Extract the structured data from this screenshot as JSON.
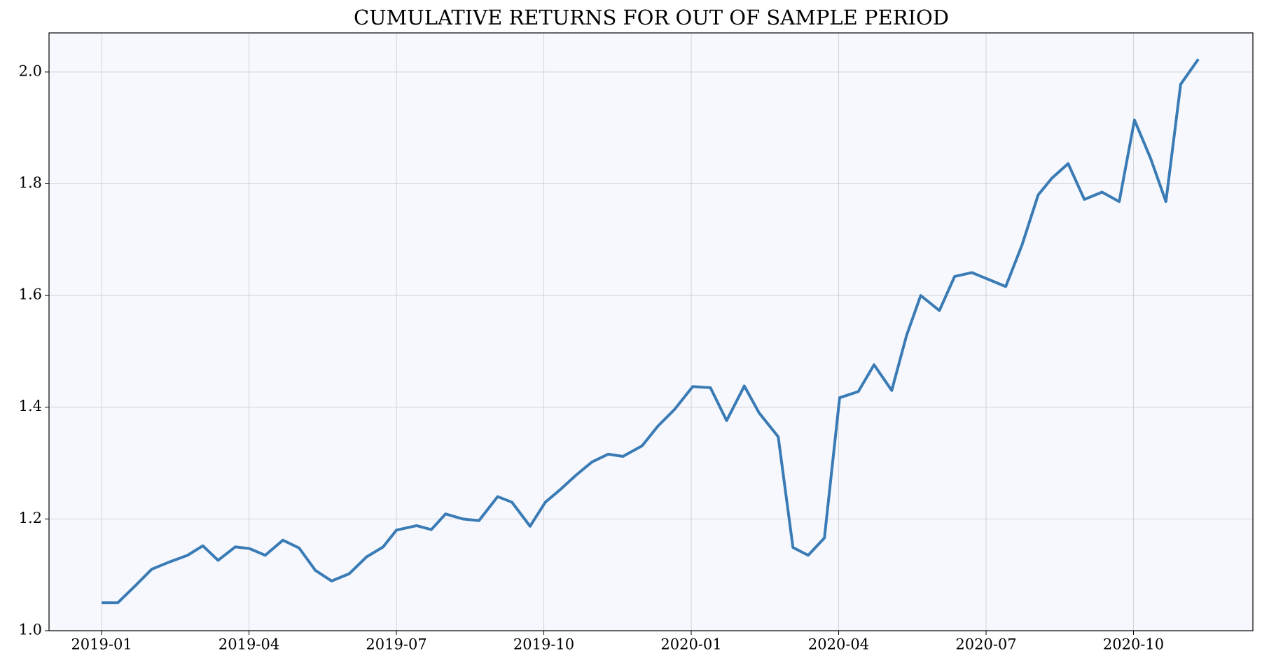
{
  "chart_data": {
    "type": "line",
    "title": "CUMULATIVE RETURNS FOR OUT OF SAMPLE PERIOD",
    "x": [
      0,
      0.33,
      0.68,
      1.02,
      1.38,
      1.75,
      2.06,
      2.37,
      2.72,
      3.01,
      3.33,
      3.69,
      4.02,
      4.35,
      4.68,
      5.04,
      5.39,
      5.73,
      6.0,
      6.41,
      6.71,
      7.0,
      7.35,
      7.68,
      8.06,
      8.35,
      8.72,
      9.03,
      9.34,
      9.65,
      9.98,
      10.31,
      10.61,
      11.0,
      11.32,
      11.66,
      12.03,
      12.39,
      12.72,
      13.08,
      13.38,
      13.77,
      14.07,
      14.38,
      14.71,
      15.02,
      15.4,
      15.72,
      16.08,
      16.38,
      16.67,
      17.05,
      17.36,
      17.71,
      18.07,
      18.4,
      18.73,
      19.06,
      19.34,
      19.67,
      20.0,
      20.36,
      20.71,
      21.02,
      21.35,
      21.66,
      21.96,
      22.32
    ],
    "series": [
      {
        "color": "#3a7bb5",
        "values": [
          1.05,
          1.05,
          1.08,
          1.11,
          1.123,
          1.135,
          1.152,
          1.126,
          1.15,
          1.147,
          1.135,
          1.162,
          1.148,
          1.108,
          1.089,
          1.102,
          1.132,
          1.15,
          1.18,
          1.188,
          1.181,
          1.209,
          1.2,
          1.197,
          1.24,
          1.23,
          1.187,
          1.23,
          1.253,
          1.278,
          1.302,
          1.316,
          1.312,
          1.331,
          1.366,
          1.396,
          1.437,
          1.435,
          1.376,
          1.438,
          1.39,
          1.347,
          1.149,
          1.135,
          1.166,
          1.417,
          1.428,
          1.476,
          1.43,
          1.528,
          1.6,
          1.573,
          1.634,
          1.641,
          1.628,
          1.616,
          1.69,
          1.78,
          1.81,
          1.836,
          1.772,
          1.785,
          1.768,
          1.914,
          1.845,
          1.768,
          1.978,
          2.023
        ]
      }
    ],
    "xlim": [
      -1.07,
      23.43
    ],
    "xticks": [
      {
        "value": 0,
        "label": "2019-01"
      },
      {
        "value": 3,
        "label": "2019-04"
      },
      {
        "value": 6,
        "label": "2019-07"
      },
      {
        "value": 9,
        "label": "2019-10"
      },
      {
        "value": 12,
        "label": "2020-01"
      },
      {
        "value": 15,
        "label": "2020-04"
      },
      {
        "value": 18,
        "label": "2020-07"
      },
      {
        "value": 21,
        "label": "2020-10"
      }
    ],
    "ylim": [
      1.0,
      2.07
    ],
    "yticks": [
      {
        "value": 1,
        "label": "1.0"
      },
      1.2,
      1.4,
      1.6,
      1.8,
      {
        "value": 2,
        "label": "2.0"
      }
    ],
    "grid": true
  }
}
